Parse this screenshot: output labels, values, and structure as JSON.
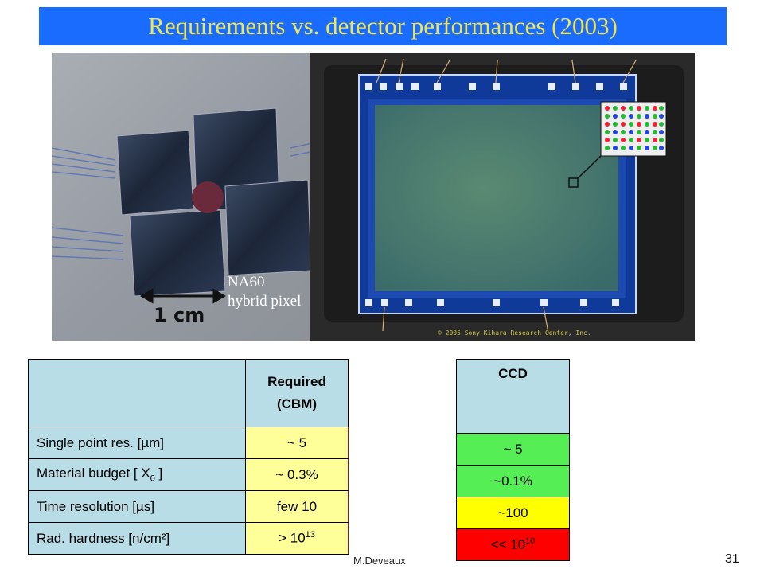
{
  "slide": {
    "title": "Requirements vs. detector performances (2003)",
    "photo_left_caption_line1": "NA60",
    "photo_left_caption_line2": "hybrid pixel",
    "scale_label": "1 cm",
    "photo_right_copyright": "© 2005 Sony-Kihara Research Center, Inc.",
    "footer_author": "M.Deveaux",
    "page_number": "31"
  },
  "requirements_table": {
    "header_required_line1": "Required",
    "header_required_line2": "(CBM)",
    "rows": [
      {
        "label": "Single point res. [µm]",
        "required": "~ 5"
      },
      {
        "label_prefix": "Material budget  [ X",
        "label_sub": "0",
        "label_suffix": " ]",
        "required": "~ 0.3%"
      },
      {
        "label": "Time resolution  [µs]",
        "required": "few 10"
      },
      {
        "label": "Rad. hardness   [n/cm²]",
        "required_prefix": "> 10",
        "required_sup": "13"
      }
    ]
  },
  "ccd_table": {
    "header": "CCD",
    "rows": [
      {
        "value": "~ 5",
        "status": "green"
      },
      {
        "value": "~0.1%",
        "status": "green"
      },
      {
        "value": "~100",
        "status": "yellow"
      },
      {
        "value_prefix": "<< 10",
        "value_sup": "10",
        "status": "red"
      }
    ]
  },
  "colors": {
    "title_bar": "#1a6cff",
    "title_text": "#f2e64a",
    "table_header": "#b8dde6",
    "required_cell": "#ffff99",
    "good": "#55ee55",
    "medium": "#ffff00",
    "bad": "#ff0000"
  }
}
